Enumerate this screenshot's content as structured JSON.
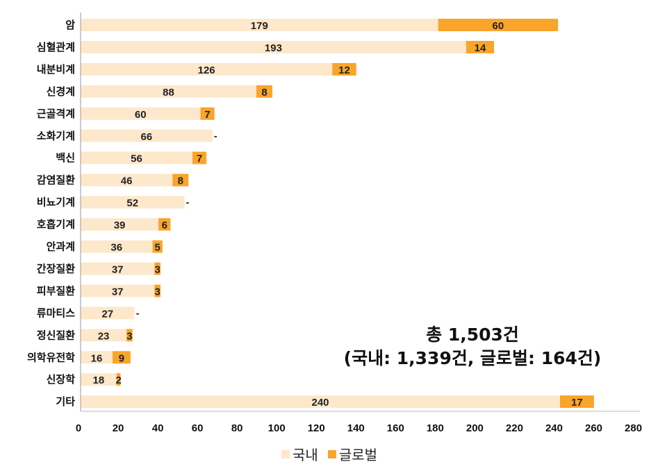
{
  "chart_data": {
    "type": "bar",
    "orientation": "horizontal",
    "stacked": true,
    "categories": [
      "암",
      "심혈관계",
      "내분비계",
      "신경계",
      "근골격계",
      "소화기계",
      "백신",
      "감염질환",
      "비뇨기계",
      "호흡기계",
      "안과계",
      "간장질환",
      "피부질환",
      "류마티스",
      "정신질환",
      "의학유전학",
      "신장학",
      "기타"
    ],
    "series": [
      {
        "name": "국내",
        "color": "#FDE8CC",
        "values": [
          179,
          193,
          126,
          88,
          60,
          66,
          56,
          46,
          52,
          39,
          36,
          37,
          37,
          27,
          23,
          16,
          18,
          240
        ]
      },
      {
        "name": "글로벌",
        "color": "#F9A52B",
        "values": [
          60,
          14,
          12,
          8,
          7,
          null,
          7,
          8,
          null,
          6,
          5,
          3,
          3,
          null,
          3,
          9,
          2,
          17
        ]
      }
    ],
    "missing_label": "-",
    "xlim": [
      0,
      280
    ],
    "xticks": [
      0,
      20,
      40,
      60,
      80,
      100,
      120,
      140,
      160,
      180,
      200,
      220,
      240,
      260,
      280
    ],
    "grid": false,
    "legend": "bottom",
    "annotation": {
      "line1": "총 1,503건",
      "line2": "(국내: 1,339건, 글로벌: 164건)"
    }
  }
}
